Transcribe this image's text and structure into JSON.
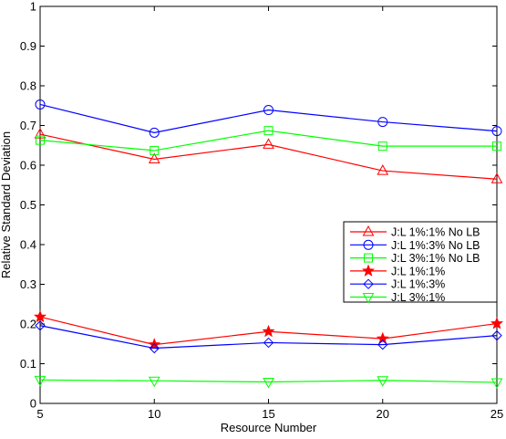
{
  "chart_data": {
    "type": "line",
    "title": "",
    "xlabel": "Resource Number",
    "ylabel": "Relative Standard Deviation",
    "x": [
      5,
      10,
      15,
      20,
      25
    ],
    "xlim": [
      5,
      25
    ],
    "ylim": [
      0,
      1
    ],
    "xticks": [
      "5",
      "10",
      "15",
      "20",
      "25"
    ],
    "yticks": [
      "0",
      "0.1",
      "0.2",
      "0.3",
      "0.4",
      "0.5",
      "0.6",
      "0.7",
      "0.8",
      "0.9",
      "1"
    ],
    "grid": false,
    "legend_position": "right",
    "series": [
      {
        "name": "J:L 1%:1% No LB",
        "color": "#ff0000",
        "marker": "triangle-up",
        "values": [
          0.678,
          0.615,
          0.652,
          0.586,
          0.565
        ]
      },
      {
        "name": "J:L 1%:3% No LB",
        "color": "#0000ff",
        "marker": "circle",
        "values": [
          0.753,
          0.682,
          0.739,
          0.709,
          0.686
        ]
      },
      {
        "name": "J:L 3%:1% No LB",
        "color": "#00ff00",
        "marker": "square",
        "values": [
          0.663,
          0.637,
          0.687,
          0.648,
          0.648
        ]
      },
      {
        "name": "J:L 1%:1%",
        "color": "#ff0000",
        "marker": "star",
        "values": [
          0.218,
          0.148,
          0.181,
          0.163,
          0.201
        ]
      },
      {
        "name": "J:L 1%:3%",
        "color": "#0000ff",
        "marker": "diamond",
        "values": [
          0.196,
          0.139,
          0.153,
          0.148,
          0.171
        ]
      },
      {
        "name": "J:L 3%:1%",
        "color": "#00ff00",
        "marker": "triangle-down",
        "values": [
          0.059,
          0.057,
          0.054,
          0.058,
          0.053
        ]
      }
    ]
  }
}
